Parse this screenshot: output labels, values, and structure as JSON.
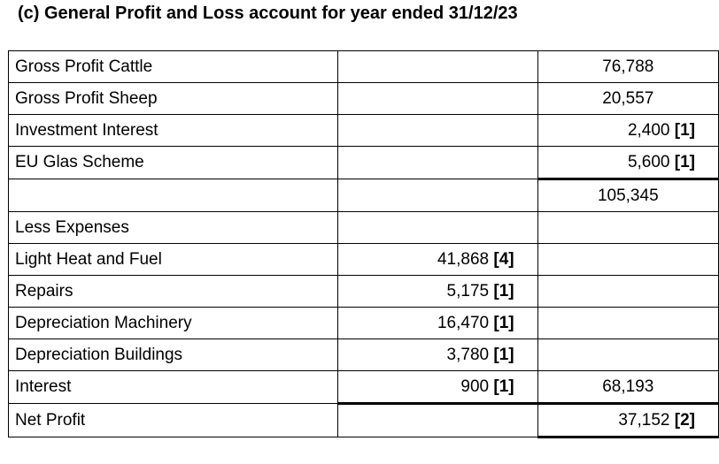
{
  "title": "(c) General Profit and Loss account for year ended 31/12/23",
  "rows": [
    {
      "label": "Gross Profit Cattle",
      "col2": "",
      "col2_mark": "",
      "col3": "76,788",
      "col3_mark": ""
    },
    {
      "label": "Gross Profit Sheep",
      "col2": "",
      "col2_mark": "",
      "col3": "20,557",
      "col3_mark": ""
    },
    {
      "label": "Investment Interest",
      "col2": "",
      "col2_mark": "",
      "col3": "2,400",
      "col3_mark": "[1]"
    },
    {
      "label": "EU Glas Scheme",
      "col2": "",
      "col2_mark": "",
      "col3": "5,600",
      "col3_mark": "[1]"
    },
    {
      "label": "",
      "col2": "",
      "col2_mark": "",
      "col3": "105,345",
      "col3_mark": ""
    },
    {
      "label": "Less Expenses",
      "col2": "",
      "col2_mark": "",
      "col3": "",
      "col3_mark": ""
    },
    {
      "label": "Light Heat and Fuel",
      "col2": "41,868",
      "col2_mark": "[4]",
      "col3": "",
      "col3_mark": ""
    },
    {
      "label": "Repairs",
      "col2": "5,175",
      "col2_mark": "[1]",
      "col3": "",
      "col3_mark": ""
    },
    {
      "label": "Depreciation Machinery",
      "col2": "16,470",
      "col2_mark": "[1]",
      "col3": "",
      "col3_mark": ""
    },
    {
      "label": "Depreciation Buildings",
      "col2": "3,780",
      "col2_mark": "[1]",
      "col3": "",
      "col3_mark": ""
    },
    {
      "label": "Interest",
      "col2": "900",
      "col2_mark": "[1]",
      "col3": "68,193",
      "col3_mark": ""
    },
    {
      "label": "Net Profit",
      "col2": "",
      "col2_mark": "",
      "col3": "37,152",
      "col3_mark": "[2]"
    }
  ]
}
